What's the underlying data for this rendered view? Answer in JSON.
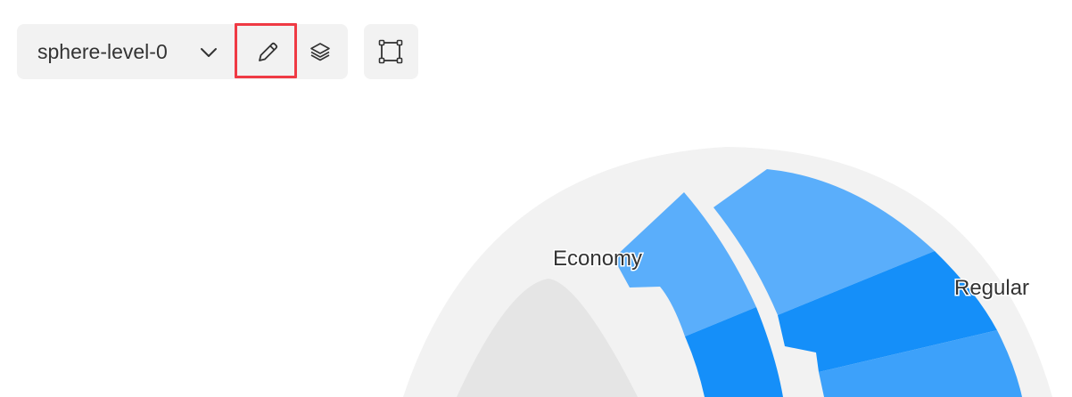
{
  "toolbar": {
    "level_select": {
      "value": "sphere-level-0",
      "icon": "chevron-down-icon"
    },
    "edit_button": {
      "icon": "pencil-icon",
      "highlighted": true,
      "highlight_color": "#ef3a44"
    },
    "layers_button": {
      "icon": "layers-icon"
    },
    "frame_button": {
      "icon": "bounding-box-icon"
    }
  },
  "chart": {
    "labels": {
      "economy": "Economy",
      "regular": "Regular"
    },
    "colors": {
      "outer_ring": "#f2f2f2",
      "inner_sphere": "#e5e5e5",
      "segment_light": "#5aaefb",
      "segment_dark": "#158ff9",
      "segment_mid": "#3da1fa"
    }
  }
}
